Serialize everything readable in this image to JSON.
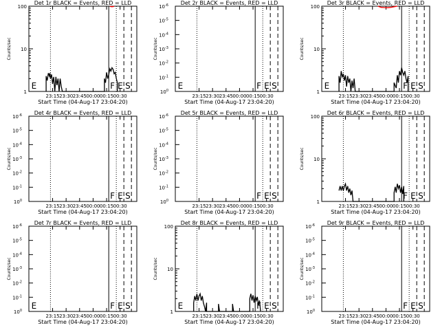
{
  "window": {
    "background": "#ffffff"
  },
  "colors": {
    "events": "#000000",
    "lld": "#ff0000"
  },
  "time_ticks": [
    "23:15",
    "23:30",
    "23:45",
    "00:00",
    "00:15",
    "00:30"
  ],
  "chart_data": [
    {
      "type": "line",
      "detector": "1r",
      "title": "Det 1r BLACK = Events, RED = LLD",
      "xlabel": "Start Time (04-Aug-17 23:04:20)",
      "ylabel": "Counts/sec",
      "scale": "log",
      "y_ticks": [
        "1",
        "10",
        "100"
      ],
      "ylim": [
        1,
        100
      ],
      "xlim": [
        0,
        100
      ],
      "markers": [
        {
          "label": "E",
          "x": 1,
          "y": 92,
          "line": "none"
        },
        {
          "label": "F",
          "x": 74,
          "y": 92,
          "line": "solid"
        },
        {
          "label": "E",
          "x": 81,
          "y": 92,
          "line": "dotted"
        },
        {
          "label": "S",
          "x": 88,
          "y": 92,
          "line": "dashed"
        },
        {
          "label": "",
          "x": 95,
          "y": 0,
          "line": "dashed"
        }
      ],
      "vlines": [
        {
          "x": 20,
          "style": "dotted"
        }
      ],
      "series": [
        {
          "color": "#000000",
          "points": [
            [
              16,
              1
            ],
            [
              16,
              2.3
            ],
            [
              17,
              1.8
            ],
            [
              18,
              2.7
            ],
            [
              19,
              2.3
            ],
            [
              19.5,
              2.7
            ],
            [
              20,
              2
            ],
            [
              21,
              2.5
            ],
            [
              22,
              1.5
            ],
            [
              23,
              2.2
            ],
            [
              24,
              1
            ],
            [
              25,
              2.2
            ],
            [
              26,
              1.4
            ],
            [
              27,
              2
            ],
            [
              28,
              1
            ],
            [
              29,
              2
            ],
            [
              30,
              1.3
            ],
            [
              31,
              1
            ],
            [
              31,
              1
            ],
            [
              70,
              1
            ],
            [
              70,
              2
            ],
            [
              71,
              1.6
            ],
            [
              72,
              2.8
            ],
            [
              73,
              2
            ],
            [
              74,
              2.5
            ],
            [
              75,
              3.4
            ],
            [
              76,
              3
            ],
            [
              77,
              3.6
            ],
            [
              78,
              3.3
            ],
            [
              79,
              2.6
            ],
            [
              80,
              2.8
            ],
            [
              81,
              2
            ],
            [
              82,
              1.6
            ],
            [
              82,
              1
            ]
          ]
        },
        {
          "color": "#ff0000",
          "points": [
            [
              75,
              99
            ],
            [
              77,
              97
            ],
            [
              79,
              99
            ]
          ]
        }
      ]
    },
    {
      "type": "line",
      "detector": "2r",
      "title": "Det 2r BLACK = Events, RED = LLD",
      "xlabel": "Start Time (04-Aug-17 23:04:20)",
      "ylabel": "Counts/sec",
      "scale": "power",
      "y_ticks_power": [
        0,
        -1,
        -2,
        -3,
        -4,
        -5,
        -6
      ],
      "xlim": [
        0,
        100
      ],
      "markers": [
        {
          "label": "E",
          "x": 1,
          "y": 6,
          "line": "none"
        },
        {
          "label": "F",
          "x": 74,
          "y": 6,
          "line": "solid"
        },
        {
          "label": "E",
          "x": 81,
          "y": 6,
          "line": "dotted"
        },
        {
          "label": "S",
          "x": 88,
          "y": 6,
          "line": "dashed"
        },
        {
          "label": "",
          "x": 95,
          "y": 0,
          "line": "dashed"
        }
      ],
      "vlines": [
        {
          "x": 20,
          "style": "dotted"
        }
      ],
      "series": []
    },
    {
      "type": "line",
      "detector": "3r",
      "title": "Det 3r BLACK = Events, RED = LLD",
      "xlabel": "Start Time (04-Aug-17 23:04:20)",
      "ylabel": "Counts/sec",
      "scale": "log",
      "y_ticks": [
        "1",
        "10",
        "100"
      ],
      "ylim": [
        1,
        100
      ],
      "xlim": [
        0,
        100
      ],
      "markers": [
        {
          "label": "E",
          "x": 1,
          "y": 92,
          "line": "none"
        },
        {
          "label": "F",
          "x": 74,
          "y": 92,
          "line": "solid"
        },
        {
          "label": "E",
          "x": 81,
          "y": 92,
          "line": "dotted"
        },
        {
          "label": "S",
          "x": 88,
          "y": 92,
          "line": "dashed"
        },
        {
          "label": "",
          "x": 95,
          "y": 0,
          "line": "dashed"
        }
      ],
      "vlines": [
        {
          "x": 20,
          "style": "dotted"
        }
      ],
      "series": [
        {
          "color": "#000000",
          "points": [
            [
              16,
              1
            ],
            [
              16,
              2.3
            ],
            [
              17,
              1.6
            ],
            [
              18,
              3
            ],
            [
              19,
              2.2
            ],
            [
              20,
              2.6
            ],
            [
              21,
              1.8
            ],
            [
              22,
              2.4
            ],
            [
              23,
              1.3
            ],
            [
              24,
              2.3
            ],
            [
              25,
              1.6
            ],
            [
              26,
              2
            ],
            [
              27,
              1
            ],
            [
              28,
              1.8
            ],
            [
              29,
              1.2
            ],
            [
              30,
              2
            ],
            [
              31,
              1
            ],
            [
              31,
              1
            ],
            [
              67,
              1
            ],
            [
              67,
              1.6
            ],
            [
              69,
              1.2
            ],
            [
              70,
              2.4
            ],
            [
              71,
              1.6
            ],
            [
              72,
              3
            ],
            [
              73,
              2.4
            ],
            [
              74,
              3.6
            ],
            [
              75,
              2.8
            ],
            [
              76,
              2.4
            ],
            [
              77,
              3
            ],
            [
              78,
              2
            ],
            [
              79,
              1.6
            ],
            [
              80,
              2.3
            ],
            [
              80,
              1
            ]
          ]
        },
        {
          "color": "#ff0000",
          "points": [
            [
              52,
              100
            ],
            [
              55,
              94
            ],
            [
              58,
              93
            ],
            [
              61,
              92
            ],
            [
              64,
              94
            ],
            [
              67,
              97
            ],
            [
              70,
              100
            ]
          ]
        }
      ]
    },
    {
      "type": "line",
      "detector": "4r",
      "title": "Det 4r BLACK = Events, RED = LLD",
      "xlabel": "Start Time (04-Aug-17 23:04:20)",
      "ylabel": "Counts/sec",
      "scale": "power",
      "y_ticks_power": [
        0,
        -1,
        -2,
        -3,
        -4,
        -5,
        -6
      ],
      "xlim": [
        0,
        100
      ],
      "markers": [
        {
          "label": "F",
          "x": 74,
          "y": 6,
          "line": "solid"
        },
        {
          "label": "E",
          "x": 81,
          "y": 6,
          "line": "dotted"
        },
        {
          "label": "S",
          "x": 88,
          "y": 6,
          "line": "dashed"
        },
        {
          "label": "",
          "x": 95,
          "y": 0,
          "line": "dashed"
        }
      ],
      "vlines": [
        {
          "x": 20,
          "style": "dotted"
        }
      ],
      "series": []
    },
    {
      "type": "line",
      "detector": "5r",
      "title": "Det 5r BLACK = Events, RED = LLD",
      "xlabel": "Start Time (04-Aug-17 23:04:20)",
      "ylabel": "Counts/sec",
      "scale": "power",
      "y_ticks_power": [
        0,
        -1,
        -2,
        -3,
        -4,
        -5,
        -6
      ],
      "xlim": [
        0,
        100
      ],
      "markers": [
        {
          "label": "F",
          "x": 74,
          "y": 6,
          "line": "solid"
        },
        {
          "label": "E",
          "x": 81,
          "y": 6,
          "line": "dotted"
        },
        {
          "label": "S",
          "x": 88,
          "y": 6,
          "line": "dashed"
        },
        {
          "label": "",
          "x": 95,
          "y": 0,
          "line": "dashed"
        }
      ],
      "vlines": [
        {
          "x": 20,
          "style": "dotted"
        }
      ],
      "series": []
    },
    {
      "type": "line",
      "detector": "6r",
      "title": "Det 6r BLACK = Events, RED = LLD",
      "xlabel": "Start Time (04-Aug-17 23:04:20)",
      "ylabel": "Counts/sec",
      "scale": "log",
      "y_ticks": [
        "1",
        "10",
        "100"
      ],
      "ylim": [
        1,
        100
      ],
      "xlim": [
        0,
        100
      ],
      "markers": [
        {
          "label": "F",
          "x": 74,
          "y": 92,
          "line": "solid"
        },
        {
          "label": "E",
          "x": 81,
          "y": 92,
          "line": "dotted"
        },
        {
          "label": "S",
          "x": 88,
          "y": 92,
          "line": "dashed"
        },
        {
          "label": "",
          "x": 95,
          "y": 0,
          "line": "dashed"
        }
      ],
      "vlines": [
        {
          "x": 20,
          "style": "dotted"
        }
      ],
      "series": [
        {
          "color": "#000000",
          "points": [
            [
              16,
              1.8
            ],
            [
              17,
              2.3
            ],
            [
              18,
              1.8
            ],
            [
              19,
              2.3
            ],
            [
              20,
              1.8
            ],
            [
              21,
              2.3
            ],
            [
              22,
              2.6
            ],
            [
              23,
              1.8
            ],
            [
              24,
              2.3
            ],
            [
              25,
              1.6
            ],
            [
              26,
              2
            ],
            [
              27,
              1.4
            ],
            [
              28,
              1.8
            ],
            [
              29,
              1
            ],
            [
              29,
              1
            ],
            [
              67,
              1
            ],
            [
              67,
              1.6
            ],
            [
              68,
              2.2
            ],
            [
              69,
              1.6
            ],
            [
              70,
              2.6
            ],
            [
              71,
              2
            ],
            [
              72,
              2.4
            ],
            [
              73,
              1.6
            ],
            [
              74,
              2.2
            ],
            [
              75,
              1.5
            ],
            [
              76,
              2.3
            ],
            [
              76,
              1
            ]
          ]
        }
      ]
    },
    {
      "type": "line",
      "detector": "7r",
      "title": "Det 7r BLACK = Events, RED = LLD",
      "xlabel": "Start Time (04-Aug-17 23:04:20)",
      "ylabel": "Counts/sec",
      "scale": "power",
      "y_ticks_power": [
        0,
        -1,
        -2,
        -3,
        -4,
        -5,
        -6
      ],
      "xlim": [
        0,
        100
      ],
      "markers": [
        {
          "label": "E",
          "x": 1,
          "y": 6,
          "line": "none"
        },
        {
          "label": "F",
          "x": 74,
          "y": 6,
          "line": "solid"
        },
        {
          "label": "E",
          "x": 81,
          "y": 6,
          "line": "dotted"
        },
        {
          "label": "S",
          "x": 88,
          "y": 6,
          "line": "dashed"
        },
        {
          "label": "",
          "x": 95,
          "y": 0,
          "line": "dashed"
        }
      ],
      "vlines": [
        {
          "x": 20,
          "style": "dotted"
        }
      ],
      "series": []
    },
    {
      "type": "line",
      "detector": "8r",
      "title": "Det 8r BLACK = Events, RED = LLD",
      "xlabel": "Start Time (04-Aug-17 23:04:20)",
      "ylabel": "Counts/sec",
      "scale": "log",
      "y_ticks": [
        "1",
        "10",
        "100"
      ],
      "ylim": [
        1,
        100
      ],
      "xlim": [
        0,
        100
      ],
      "markers": [
        {
          "label": "E",
          "x": 1,
          "y": 92,
          "line": "none"
        },
        {
          "label": "F",
          "x": 74,
          "y": 92,
          "line": "solid"
        },
        {
          "label": "E",
          "x": 81,
          "y": 92,
          "line": "dotted"
        },
        {
          "label": "S",
          "x": 88,
          "y": 92,
          "line": "dashed"
        },
        {
          "label": "",
          "x": 95,
          "y": 0,
          "line": "dashed"
        }
      ],
      "vlines": [
        {
          "x": 20,
          "style": "dotted"
        }
      ],
      "series": [
        {
          "color": "#000000",
          "points": [
            [
              17,
              1
            ],
            [
              17,
              1.6
            ],
            [
              18,
              2.3
            ],
            [
              19,
              1.8
            ],
            [
              20,
              2.6
            ],
            [
              21,
              1.8
            ],
            [
              22,
              2.3
            ],
            [
              23,
              2.6
            ],
            [
              24,
              1.8
            ],
            [
              25,
              2.3
            ],
            [
              26,
              1.6
            ],
            [
              27,
              1.3
            ],
            [
              28,
              1
            ],
            [
              29,
              1.6
            ],
            [
              29,
              1
            ],
            [
              40,
              1
            ],
            [
              40,
              1.5
            ],
            [
              41,
              1
            ],
            [
              53,
              1
            ],
            [
              53,
              1.5
            ],
            [
              54,
              1
            ],
            [
              69,
              1
            ],
            [
              69,
              2
            ],
            [
              70,
              2.6
            ],
            [
              71,
              1.8
            ],
            [
              72,
              2.4
            ],
            [
              73,
              1.6
            ],
            [
              74,
              2.3
            ],
            [
              75,
              1.8
            ],
            [
              76,
              2.2
            ],
            [
              77,
              1.4
            ],
            [
              78,
              1.8
            ],
            [
              79,
              1
            ],
            [
              79,
              1
            ]
          ]
        }
      ]
    },
    {
      "type": "line",
      "detector": "9r",
      "title": "Det 9r BLACK = Events, RED = LLD",
      "xlabel": "Start Time (04-Aug-17 23:04:20)",
      "ylabel": "Counts/sec",
      "scale": "power",
      "y_ticks_power": [
        0,
        -1,
        -2,
        -3,
        -4,
        -5,
        -6
      ],
      "xlim": [
        0,
        100
      ],
      "markers": [
        {
          "label": "F",
          "x": 74,
          "y": 6,
          "line": "solid"
        },
        {
          "label": "E",
          "x": 81,
          "y": 6,
          "line": "dotted"
        },
        {
          "label": "S",
          "x": 88,
          "y": 6,
          "line": "dashed"
        },
        {
          "label": "",
          "x": 95,
          "y": 0,
          "line": "dashed"
        }
      ],
      "vlines": [
        {
          "x": 20,
          "style": "dotted"
        }
      ],
      "series": []
    }
  ]
}
